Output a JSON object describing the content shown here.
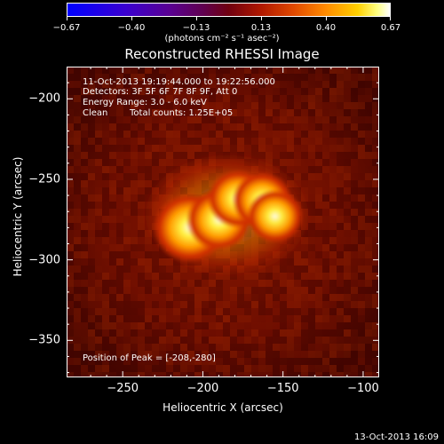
{
  "colorbar": {
    "ticks": [
      "-0.67",
      "-0.40",
      "-0.13",
      "0.13",
      "0.40",
      "0.67"
    ],
    "units": "(photons cm⁻² s⁻¹ asec⁻²)",
    "range": [
      -0.67,
      0.67
    ]
  },
  "plot": {
    "title": "Reconstructed RHESSI Image",
    "xlabel": "Heliocentric X (arcsec)",
    "ylabel": "Heliocentric Y (arcsec)",
    "time_range": "11-Oct-2013 19:19:44.000 to 19:22:56.000",
    "detectors": "Detectors: 3F 5F 6F 7F 8F 9F, Att 0",
    "energy": "Energy Range: 3.0 - 6.0 keV",
    "method": "Clean",
    "counts": "Total counts: 1.25E+05",
    "peak": "Position of Peak = [-208,-280]",
    "timestamp": "13-Oct-2013 16:09"
  },
  "chart_data": {
    "type": "heatmap",
    "title": "Reconstructed RHESSI Image",
    "xlabel": "Heliocentric X (arcsec)",
    "ylabel": "Heliocentric Y (arcsec)",
    "xlim": [
      -285,
      -90
    ],
    "ylim": [
      -373,
      -180
    ],
    "x_ticks": [
      -250,
      -200,
      -150,
      -100
    ],
    "y_ticks": [
      -200,
      -250,
      -300,
      -350
    ],
    "x_tick_labels": [
      "−250",
      "−200",
      "−150",
      "−100"
    ],
    "y_tick_labels": [
      "−200",
      "−250",
      "−300",
      "−350"
    ],
    "colorbar_range": [
      -0.67,
      0.67
    ],
    "peak_position": [
      -208,
      -280
    ],
    "sources": [
      {
        "x": -208,
        "y": -280,
        "peak": 0.67
      },
      {
        "x": -190,
        "y": -275,
        "peak": 0.55
      },
      {
        "x": -178,
        "y": -262,
        "peak": 0.5
      },
      {
        "x": -163,
        "y": -263,
        "peak": 0.47
      },
      {
        "x": -155,
        "y": -273,
        "peak": 0.42
      }
    ]
  }
}
